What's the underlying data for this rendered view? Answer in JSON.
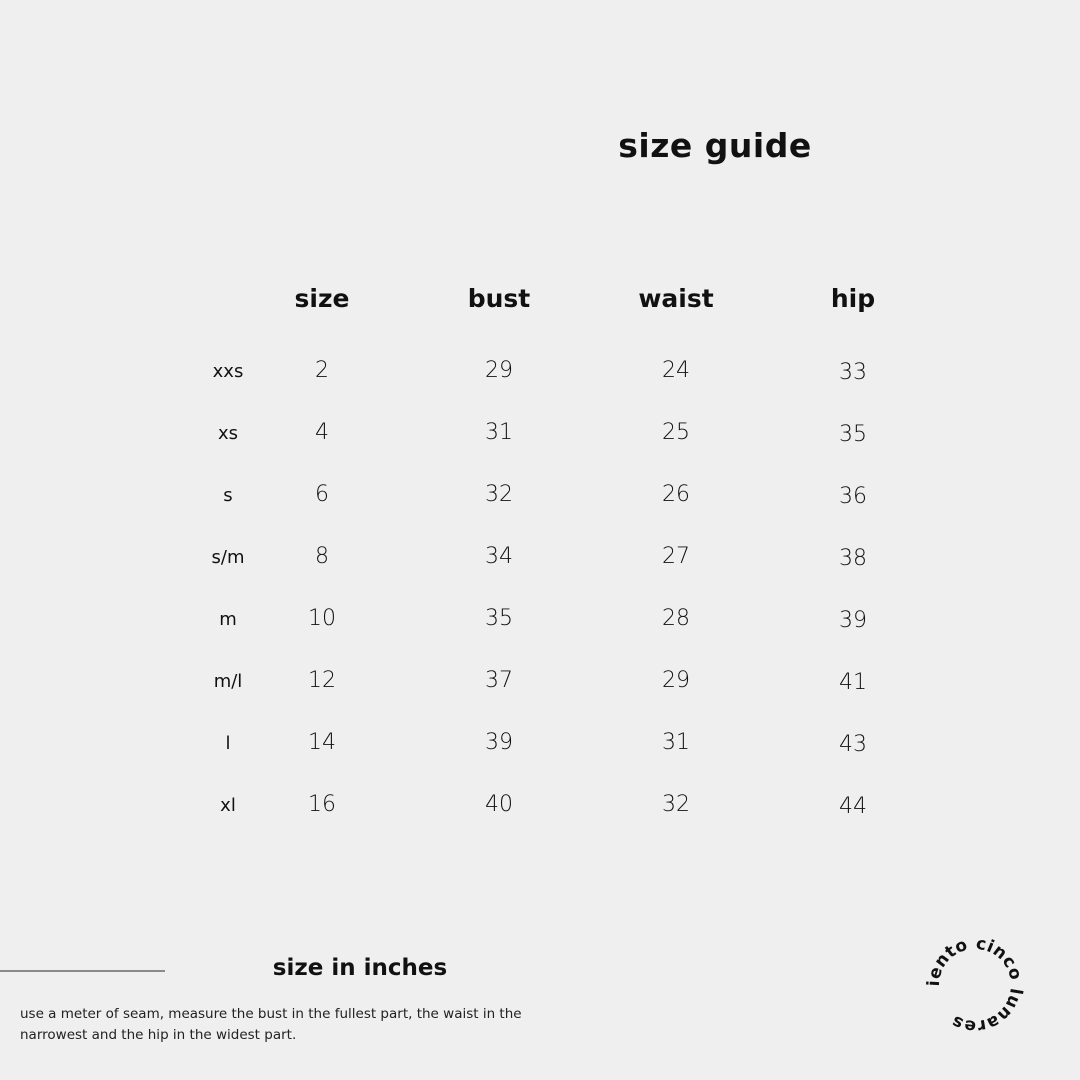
{
  "title": "size guide",
  "table": {
    "headers": [
      "size",
      "bust",
      "waist",
      "hip"
    ],
    "rows": [
      {
        "label": "xxs",
        "size": "2",
        "bust": "29",
        "waist": "24",
        "hip": "33"
      },
      {
        "label": "xs",
        "size": "4",
        "bust": "31",
        "waist": "25",
        "hip": "35"
      },
      {
        "label": "s",
        "size": "6",
        "bust": "32",
        "waist": "26",
        "hip": "36"
      },
      {
        "label": "s/m",
        "size": "8",
        "bust": "34",
        "waist": "27",
        "hip": "38"
      },
      {
        "label": "m",
        "size": "10",
        "bust": "35",
        "waist": "28",
        "hip": "39"
      },
      {
        "label": "m/l",
        "size": "12",
        "bust": "37",
        "waist": "29",
        "hip": "41"
      },
      {
        "label": "l",
        "size": "14",
        "bust": "39",
        "waist": "31",
        "hip": "43"
      },
      {
        "label": "xl",
        "size": "16",
        "bust": "40",
        "waist": "32",
        "hip": "44"
      }
    ]
  },
  "footer": {
    "subtitle": "size in inches",
    "note": "use a meter of seam, measure the bust in the fullest part, the waist in the narrowest and the hip in the widest part."
  },
  "logo": {
    "text": "ciento cinco lunares"
  },
  "colors": {
    "background": "#efefef",
    "text": "#111111",
    "rule": "#8a8a8a"
  }
}
